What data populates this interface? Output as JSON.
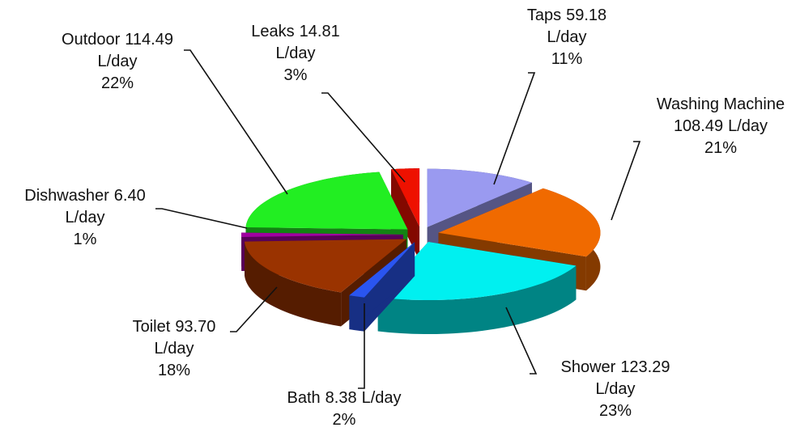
{
  "chart_data": {
    "type": "pie3d",
    "categories": [
      "Taps",
      "Washing Machine",
      "Shower",
      "Bath",
      "Toilet",
      "Dishwasher",
      "Outdoor",
      "Leaks"
    ],
    "values": [
      59.18,
      108.49,
      123.29,
      8.38,
      93.7,
      6.4,
      114.49,
      14.81
    ],
    "value_labels": [
      "59.18",
      "108.49",
      "123.29",
      "8.38",
      "93.70",
      "6.40",
      "114.49",
      "14.81"
    ],
    "unit": "L/day",
    "percents": [
      11,
      21,
      23,
      2,
      18,
      1,
      22,
      3
    ],
    "percent_labels": [
      "11%",
      "21%",
      "23%",
      "2%",
      "18%",
      "1%",
      "22%",
      "3%"
    ],
    "colors": [
      "#9a9af0",
      "#f06a00",
      "#00f0f0",
      "#2a55f0",
      "#9a3300",
      "#a000a0",
      "#22ee22",
      "#ee1100"
    ]
  }
}
